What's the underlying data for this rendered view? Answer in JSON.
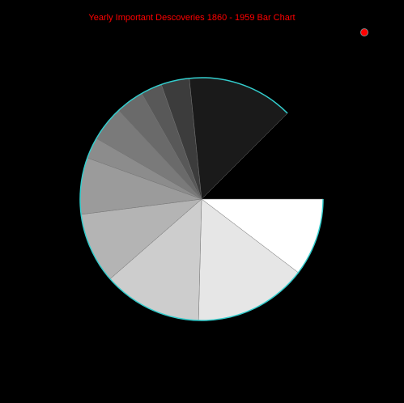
{
  "chart_data": {
    "type": "pie",
    "title": "Yearly Important Descoveries 1860 - 1959 Bar Chart",
    "values": [
      11,
      16,
      14,
      10,
      8,
      3,
      5,
      4,
      3,
      4,
      15
    ],
    "slice_colors": [
      "#ffffff",
      "#e6e6e6",
      "#cdcdcd",
      "#b4b4b4",
      "#9b9b9b",
      "#8c8c8c",
      "#7a7a7a",
      "#6a6a6a",
      "#585858",
      "#3c3c3c",
      "#1a1a1a"
    ],
    "gap_degrees": 45,
    "outline_color": "#33cccc",
    "title_color": "#ff0000",
    "background": "#000000",
    "legend_marker_color": "#ff0000"
  }
}
